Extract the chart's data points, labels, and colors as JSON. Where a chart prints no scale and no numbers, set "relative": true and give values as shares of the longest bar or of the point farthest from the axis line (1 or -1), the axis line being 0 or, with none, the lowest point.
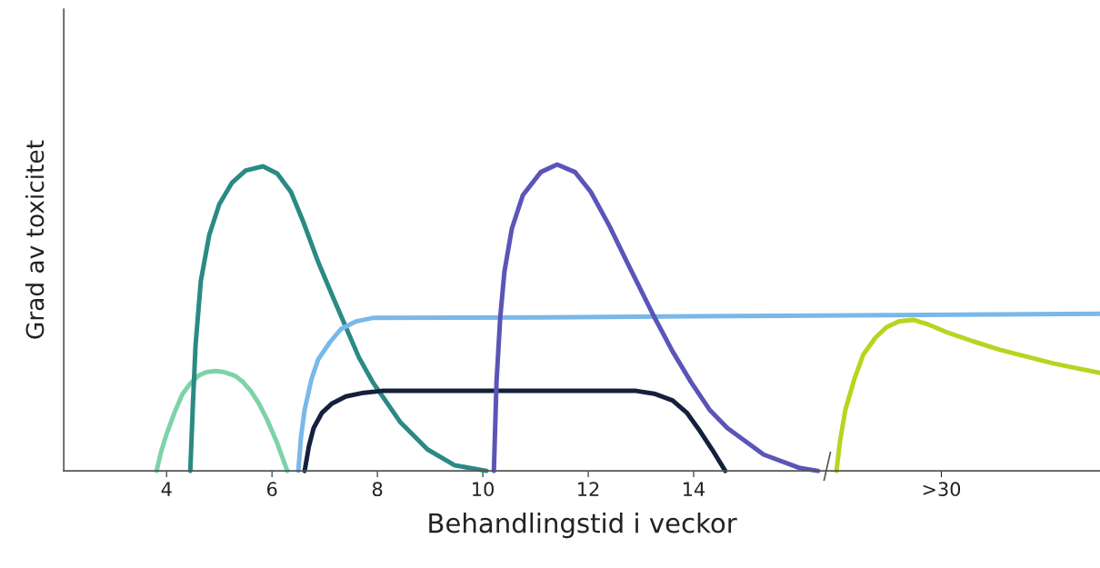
{
  "chart_data": {
    "type": "line",
    "xlabel": "Behandlingstid i veckor",
    "ylabel": "Grad av toxicitet",
    "relative": true,
    "tick_labels": "x",
    "xlim": [
      2.05,
      21.71
    ],
    "xticks": [
      4,
      6,
      8,
      10,
      12,
      14,
      {
        "value": 18.7,
        "label": ">30"
      }
    ],
    "series": [
      {
        "color": "#7dd3a8",
        "x": [
          3.81,
          3.9,
          4.0,
          4.15,
          4.3,
          4.45,
          4.6,
          4.75,
          4.93,
          5.1,
          5.3,
          5.45,
          5.6,
          5.75,
          5.9,
          6.1,
          6.29
        ],
        "values": [
          0,
          0.065,
          0.12,
          0.19,
          0.25,
          0.285,
          0.31,
          0.322,
          0.326,
          0.322,
          0.31,
          0.29,
          0.26,
          0.22,
          0.17,
          0.09,
          0
        ]
      },
      {
        "color": "#2a8a85",
        "x": [
          4.45,
          4.5,
          4.55,
          4.65,
          4.81,
          5.0,
          5.24,
          5.5,
          5.83,
          6.1,
          6.36,
          6.6,
          6.88,
          7.15,
          7.4,
          7.65,
          7.91,
          8.43,
          8.95,
          9.47,
          10.07
        ],
        "values": [
          0,
          0.22,
          0.41,
          0.62,
          0.77,
          0.87,
          0.94,
          0.98,
          0.994,
          0.97,
          0.91,
          0.81,
          0.68,
          0.57,
          0.47,
          0.37,
          0.29,
          0.16,
          0.07,
          0.018,
          0
        ]
      },
      {
        "color": "#7ab8e8",
        "x": [
          6.5,
          6.55,
          6.62,
          6.75,
          6.88,
          7.1,
          7.31,
          7.6,
          7.91,
          11.19,
          16.36,
          21.71
        ],
        "values": [
          0,
          0.11,
          0.2,
          0.3,
          0.365,
          0.42,
          0.463,
          0.488,
          0.499,
          0.501,
          0.507,
          0.513
        ]
      },
      {
        "color": "#14213d",
        "x": [
          6.62,
          6.7,
          6.79,
          6.95,
          7.14,
          7.4,
          7.74,
          8.09,
          12.91,
          13.25,
          13.6,
          13.87,
          14.12,
          14.35,
          14.6
        ],
        "values": [
          0,
          0.08,
          0.14,
          0.19,
          0.22,
          0.243,
          0.255,
          0.261,
          0.261,
          0.252,
          0.23,
          0.19,
          0.13,
          0.07,
          0
        ]
      },
      {
        "color": "#5b55b8",
        "x": [
          10.21,
          10.26,
          10.33,
          10.41,
          10.55,
          10.76,
          11.1,
          11.41,
          11.75,
          12.05,
          12.4,
          12.74,
          13.26,
          13.6,
          13.95,
          14.3,
          14.64,
          15.33,
          16.02,
          16.36
        ],
        "values": [
          0,
          0.29,
          0.5,
          0.65,
          0.79,
          0.9,
          0.975,
          1.0,
          0.975,
          0.91,
          0.8,
          0.68,
          0.5,
          0.39,
          0.29,
          0.2,
          0.14,
          0.053,
          0.009,
          0
        ]
      },
      {
        "color": "#b5d620",
        "x": [
          16.71,
          16.78,
          16.88,
          17.05,
          17.22,
          17.45,
          17.66,
          17.9,
          18.17,
          18.45,
          18.78,
          19.3,
          19.81,
          20.84,
          21.71
        ],
        "values": [
          0,
          0.1,
          0.2,
          0.3,
          0.38,
          0.435,
          0.469,
          0.488,
          0.493,
          0.478,
          0.454,
          0.423,
          0.395,
          0.35,
          0.32
        ]
      }
    ]
  }
}
